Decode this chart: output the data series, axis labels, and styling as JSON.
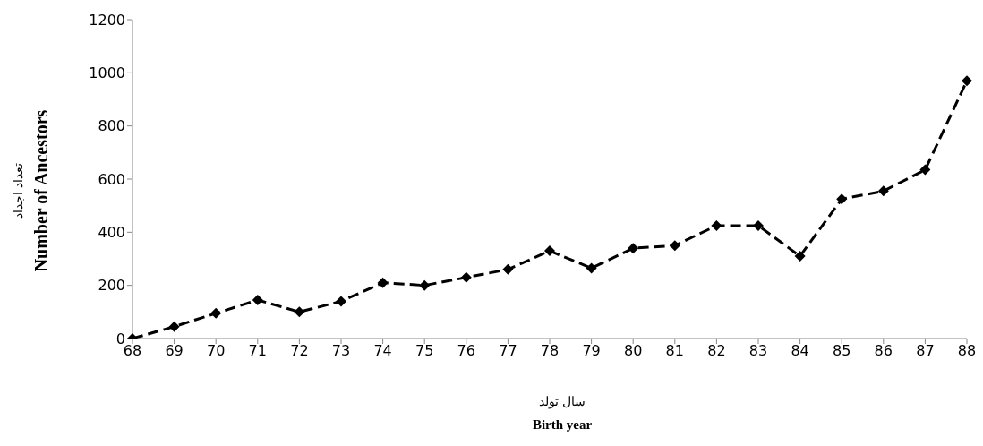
{
  "chart_data": {
    "type": "line",
    "categories": [
      "68",
      "69",
      "70",
      "71",
      "72",
      "73",
      "74",
      "75",
      "76",
      "77",
      "78",
      "79",
      "80",
      "81",
      "82",
      "83",
      "84",
      "85",
      "86",
      "87",
      "88"
    ],
    "series": [
      {
        "color": "#000000",
        "values": [
          0,
          45,
          95,
          145,
          100,
          140,
          210,
          200,
          230,
          260,
          330,
          265,
          340,
          350,
          425,
          425,
          310,
          525,
          555,
          635,
          970
        ]
      }
    ],
    "ylim": [
      0,
      1200
    ],
    "yticks": [
      0,
      200,
      400,
      600,
      800,
      1000,
      1200
    ],
    "ylabel": "Number of Ancestors",
    "xlabel": "Birth year",
    "annotations": [
      "تعداد اجداد",
      "سال تولد"
    ],
    "grid": false,
    "legend": false,
    "marker": "diamond",
    "line_style": "dashed"
  }
}
